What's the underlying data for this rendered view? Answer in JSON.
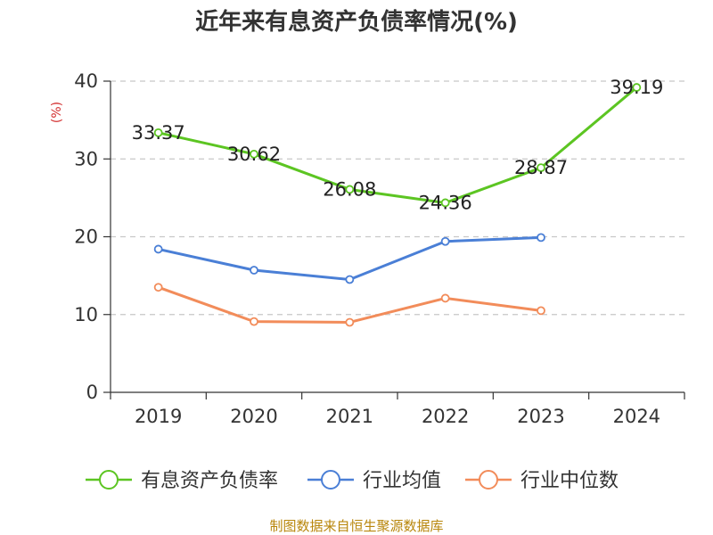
{
  "chart_data": {
    "type": "line",
    "title": "近年来有息资产负债率情况(%)",
    "ylabel": "(%)",
    "xlabel": "",
    "categories": [
      "2019",
      "2020",
      "2021",
      "2022",
      "2023",
      "2024"
    ],
    "ylim": [
      0,
      40
    ],
    "yticks": [
      0,
      10,
      20,
      30,
      40
    ],
    "grid": true,
    "legend_position": "bottom",
    "series": [
      {
        "name": "有息资产负债率",
        "color": "#5cc522",
        "values": [
          33.37,
          30.62,
          26.08,
          24.36,
          28.87,
          39.19
        ],
        "labels": [
          "33.37",
          "30.62",
          "26.08",
          "24.36",
          "28.87",
          "39.19"
        ]
      },
      {
        "name": "行业均值",
        "color": "#4a7fd6",
        "values": [
          18.4,
          15.7,
          14.5,
          19.4,
          19.9,
          null
        ]
      },
      {
        "name": "行业中位数",
        "color": "#f28c5a",
        "values": [
          13.5,
          9.1,
          9.0,
          12.1,
          10.5,
          null
        ]
      }
    ]
  },
  "source_text": "制图数据来自恒生聚源数据库"
}
